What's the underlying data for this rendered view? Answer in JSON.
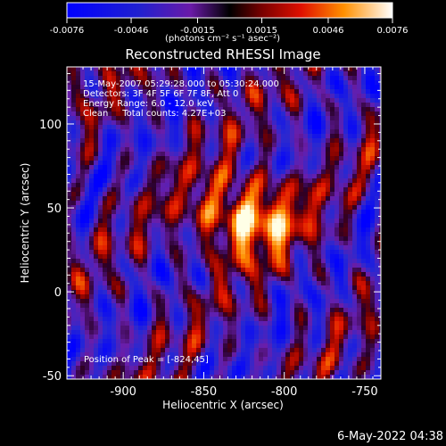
{
  "colorbar": {
    "ticks": [
      "-0.0076",
      "-0.0046",
      "-0.0015",
      "0.0015",
      "0.0046",
      "0.0076"
    ],
    "unit_label": "(photons cm⁻² s⁻¹ asec⁻²)",
    "range": [
      -0.0076,
      0.0076
    ]
  },
  "chart_data": {
    "type": "heatmap",
    "title": "Reconstructed RHESSI Image",
    "xlabel": "Heliocentric X (arcsec)",
    "ylabel": "Heliocentric Y (arcsec)",
    "xlim": [
      -935,
      -740
    ],
    "ylim": [
      -52,
      134
    ],
    "xticks": [
      {
        "value": -900,
        "label": "-900"
      },
      {
        "value": -850,
        "label": "-850"
      },
      {
        "value": -800,
        "label": "-800"
      },
      {
        "value": -750,
        "label": "-750"
      }
    ],
    "yticks": [
      {
        "value": 100,
        "label": "100"
      },
      {
        "value": 50,
        "label": "50"
      },
      {
        "value": 0,
        "label": "0"
      },
      {
        "value": -50,
        "label": "-50"
      }
    ],
    "peak": [
      -824,
      45
    ],
    "annotations": {
      "time": "15-May-2007 05:29:28.000 to 05:30:24.000",
      "detectors": "Detectors: 3F 4F 5F 6F 7F 8F, Att 0",
      "energy": "Energy Range: 6.0 - 12.0 keV",
      "clean": "Clean     Total counts: 4.27E+03",
      "peak": "Position of Peak = [-824,45]"
    }
  },
  "footer": {
    "date": "6-May-2022 04:38"
  }
}
